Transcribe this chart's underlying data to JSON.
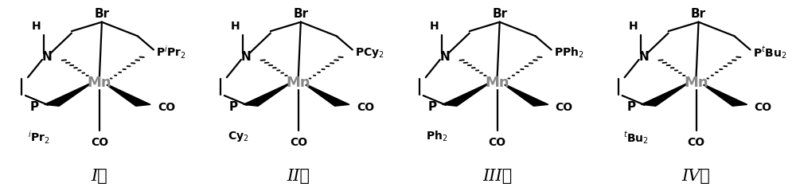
{
  "background_color": "#ffffff",
  "figure_width": 10.0,
  "figure_height": 2.45,
  "dpi": 100,
  "mn_color": "#888888",
  "text_color": "#000000",
  "line_color": "#000000",
  "label_fontsize": 15,
  "structure_fontsize": 10,
  "mn_fontsize": 13,
  "centers": [
    0.125,
    0.375,
    0.625,
    0.875
  ],
  "pr_labels": [
    "P$^{i}$Pr$_2$",
    "PCy$_2$",
    "PPh$_2$",
    "P$^{t}$Bu$_2$"
  ],
  "pl_labels": [
    "$^{i}$Pr$_2$",
    "Cy$_2$",
    "Ph$_2$",
    "$^{t}$Bu$_2$"
  ],
  "lab_texts": [
    "I；",
    "II；",
    "III；",
    "IV。"
  ]
}
